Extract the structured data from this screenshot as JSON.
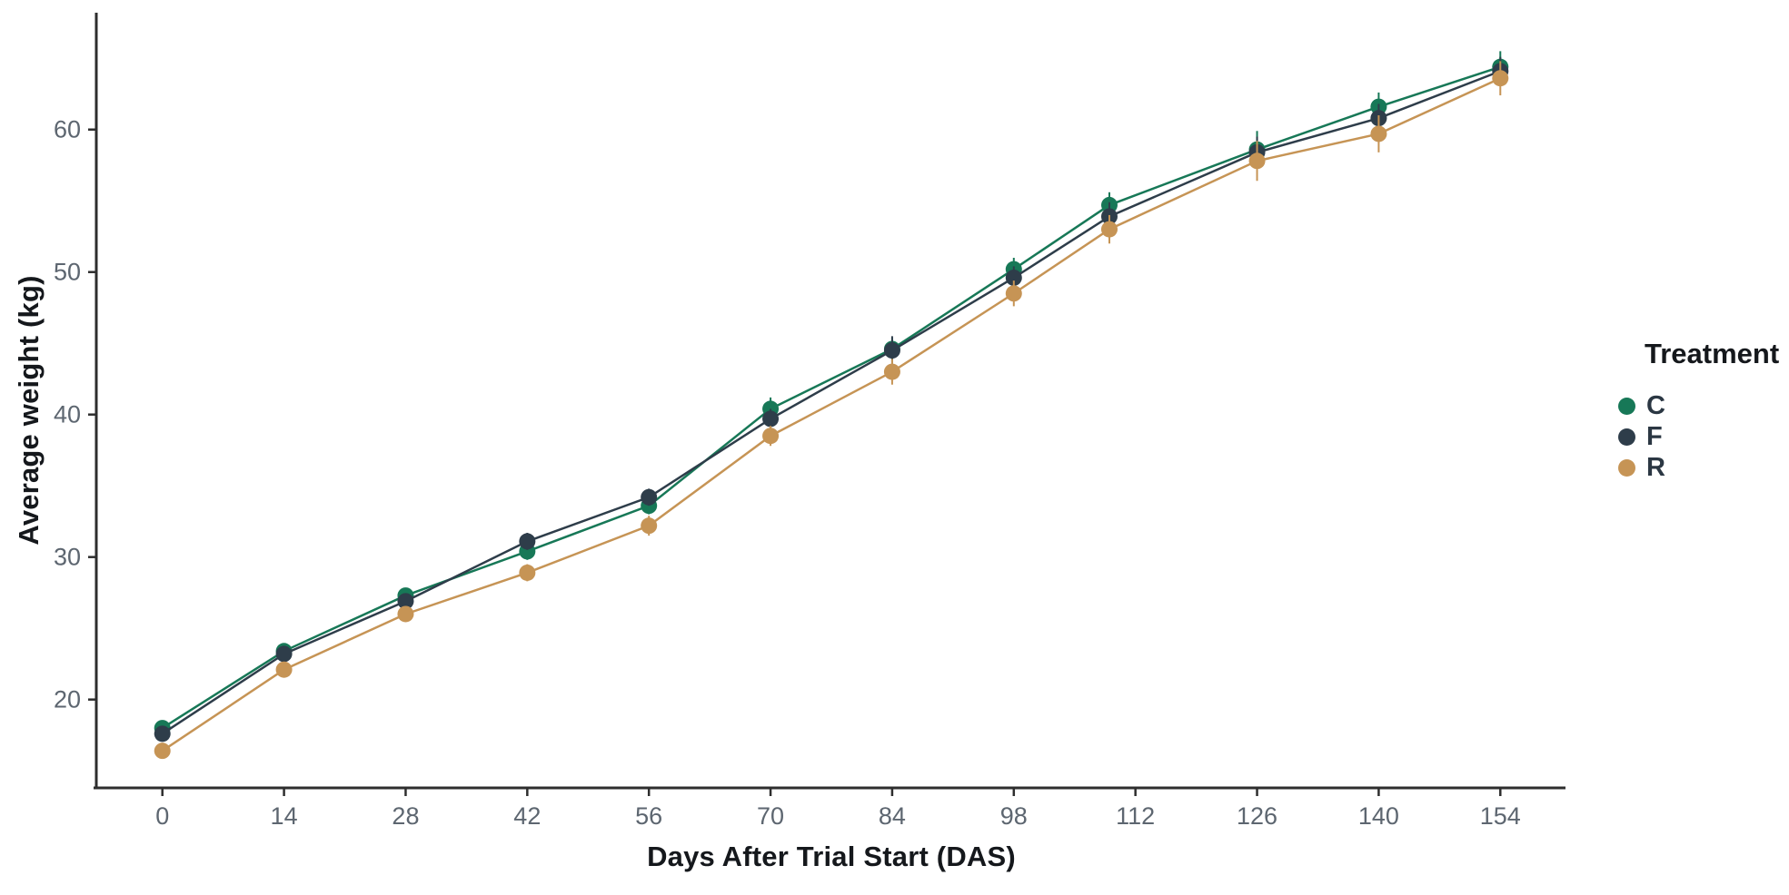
{
  "chart_data": {
    "type": "line",
    "title": "",
    "xlabel": "Days After Trial Start (DAS)",
    "ylabel": "Average weight (kg)",
    "grid": false,
    "background_color": "#ffffff",
    "axis_style": {
      "line_color": "#2e2e2e",
      "tick_color": "#2e2e2e",
      "tick_label_color": "#5d6670",
      "title_color": "#15181c"
    },
    "x_range": [
      -7.5,
      161.5
    ],
    "y_range": [
      13.8,
      68.2
    ],
    "x_ticks": {
      "values": [
        0,
        14,
        28,
        42,
        56,
        70,
        84,
        98,
        112,
        126,
        140,
        154
      ],
      "labels": [
        "0",
        "14",
        "28",
        "42",
        "56",
        "70",
        "84",
        "98",
        "112",
        "126",
        "140",
        "154"
      ]
    },
    "y_ticks": {
      "values": [
        20,
        30,
        40,
        50,
        60
      ],
      "labels": [
        "20",
        "30",
        "40",
        "50",
        "60"
      ]
    },
    "x": [
      0,
      14,
      28,
      42,
      56,
      70,
      84,
      98,
      109,
      126,
      140,
      154
    ],
    "marker": "circle",
    "error_bars": true,
    "legend": {
      "title": "Treatment",
      "position": "right"
    },
    "series": [
      {
        "name": "C",
        "color": "#177857",
        "values": [
          18.0,
          23.4,
          27.3,
          30.4,
          33.6,
          40.4,
          44.6,
          50.2,
          54.7,
          58.6,
          61.6,
          64.4
        ],
        "errors": [
          0.5,
          0.4,
          0.5,
          0.6,
          0.6,
          0.8,
          0.8,
          0.8,
          0.9,
          1.3,
          1.0,
          1.1
        ]
      },
      {
        "name": "F",
        "color": "#2e3d4a",
        "values": [
          17.6,
          23.2,
          26.9,
          31.1,
          34.2,
          39.7,
          44.5,
          49.6,
          53.9,
          58.4,
          60.8,
          64.1
        ],
        "errors": [
          0.4,
          0.4,
          0.5,
          0.6,
          0.6,
          0.7,
          1.0,
          0.8,
          1.0,
          1.1,
          1.0,
          1.0
        ]
      },
      {
        "name": "R",
        "color": "#c69455",
        "values": [
          16.4,
          22.1,
          26.0,
          28.9,
          32.2,
          38.5,
          43.0,
          48.5,
          53.0,
          57.8,
          59.7,
          63.6
        ],
        "errors": [
          0.4,
          0.4,
          0.5,
          0.6,
          0.7,
          0.7,
          0.9,
          0.9,
          1.0,
          1.4,
          1.3,
          1.2
        ]
      }
    ]
  }
}
